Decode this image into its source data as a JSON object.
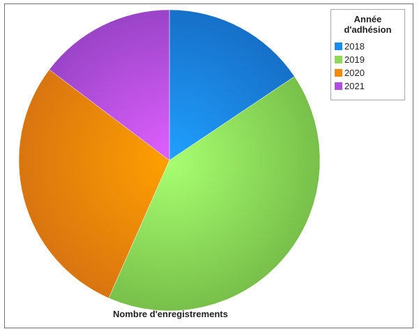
{
  "chart_data": {
    "type": "pie",
    "categories": [
      "2018",
      "2019",
      "2020",
      "2021"
    ],
    "values": [
      15.6,
      41.0,
      28.7,
      14.7
    ],
    "colors": [
      "#1a8cf0",
      "#8fd85a",
      "#f38a0c",
      "#b34ee3"
    ],
    "legend_title": "Année d'adhésion",
    "legend_position": "top-right",
    "xlabel": "Nombre d'enregistrements"
  }
}
